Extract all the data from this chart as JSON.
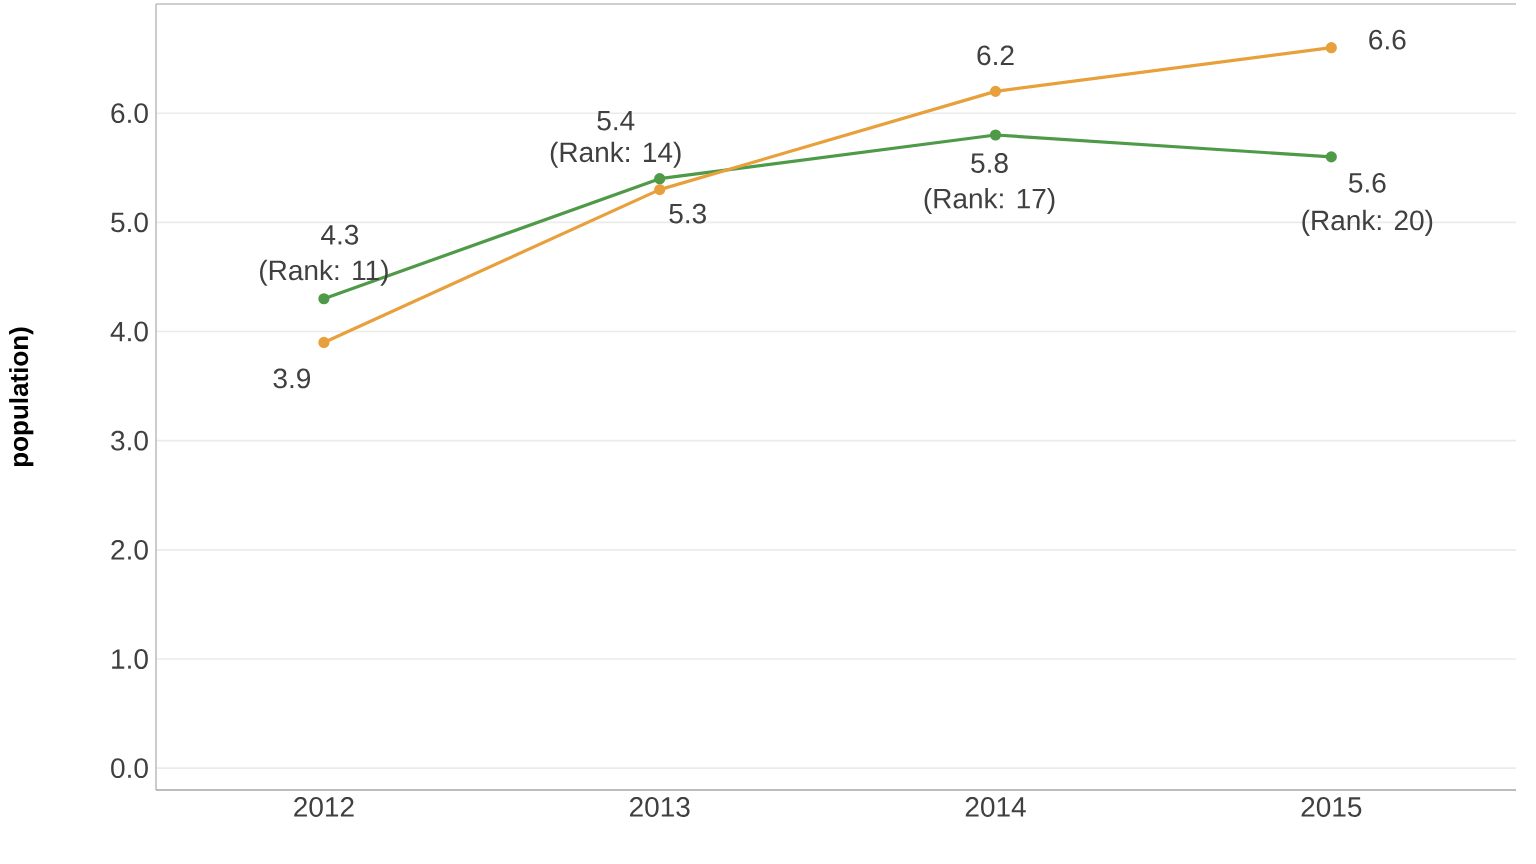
{
  "chart_data": {
    "type": "line",
    "ylabel": "population)",
    "categories": [
      "2012",
      "2013",
      "2014",
      "2015"
    ],
    "series": [
      {
        "color": "#4e9a48",
        "values": [
          4.3,
          5.4,
          5.8,
          5.6
        ],
        "value_labels": [
          "4.3",
          "5.4",
          "5.8",
          "5.6"
        ]
      },
      {
        "color": "#e8a03c",
        "values": [
          3.9,
          5.3,
          6.2,
          6.6
        ],
        "value_labels": [
          "3.9",
          "5.3",
          "6.2",
          "6.6"
        ]
      }
    ],
    "annotations": [
      {
        "text": "(Rank: 11)",
        "x": "2012",
        "y": 4.3
      },
      {
        "text": "(Rank: 14)",
        "x": "2013",
        "y": 5.4
      },
      {
        "text": "(Rank: 17)",
        "x": "2014",
        "y": 5.8
      },
      {
        "text": "(Rank: 20)",
        "x": "2015",
        "y": 5.6
      }
    ],
    "ylim": [
      -0.2,
      7.0
    ],
    "yticks": [
      {
        "value": 0,
        "label": "0.0"
      },
      {
        "value": 1,
        "label": "1.0"
      },
      {
        "value": 2,
        "label": "2.0"
      },
      {
        "value": 3,
        "label": "3.0"
      },
      {
        "value": 4,
        "label": "4.0"
      },
      {
        "value": 5,
        "label": "5.0"
      },
      {
        "value": 6,
        "label": "6.0"
      }
    ],
    "grid": "y",
    "marker": "circle",
    "line_style": "solid"
  }
}
